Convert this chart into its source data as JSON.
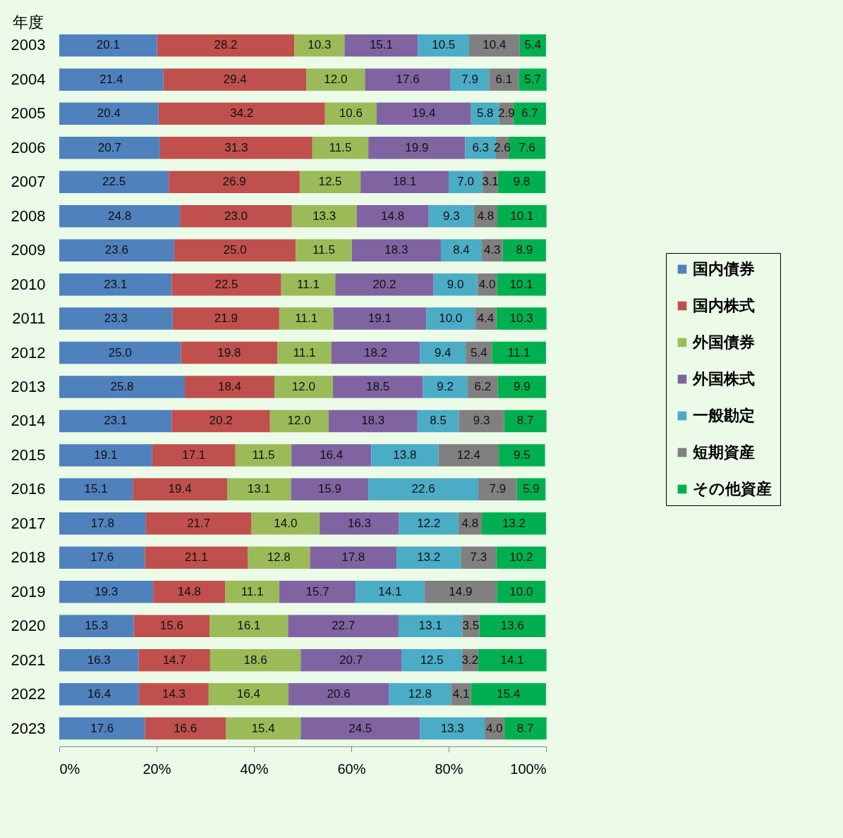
{
  "chart_data": {
    "type": "bar",
    "orientation": "horizontal",
    "stacked": true,
    "legend": "right",
    "grid": false,
    "ylabel": "年度",
    "categories": [
      "2003",
      "2004",
      "2005",
      "2006",
      "2007",
      "2008",
      "2009",
      "2010",
      "2011",
      "2012",
      "2013",
      "2014",
      "2015",
      "2016",
      "2017",
      "2018",
      "2019",
      "2020",
      "2021",
      "2022",
      "2023"
    ],
    "xlim": [
      0,
      100
    ],
    "xticks": [
      {
        "value": 0,
        "label": "0%"
      },
      {
        "value": 20,
        "label": "20%"
      },
      {
        "value": 40,
        "label": "40%"
      },
      {
        "value": 60,
        "label": "60%"
      },
      {
        "value": 80,
        "label": "80%"
      },
      {
        "value": 100,
        "label": "100%"
      }
    ],
    "series": [
      {
        "name": "国内債券",
        "color": "#4f81bd",
        "values": [
          20.1,
          21.4,
          20.4,
          20.7,
          22.5,
          24.8,
          23.6,
          23.1,
          23.3,
          25.0,
          25.8,
          23.1,
          19.1,
          15.1,
          17.8,
          17.6,
          19.3,
          15.3,
          16.3,
          16.4,
          17.6
        ],
        "value_labels": [
          "20.1",
          "21.4",
          "20.4",
          "20.7",
          "22.5",
          "24.8",
          "23.6",
          "23.1",
          "23.3",
          "25.0",
          "25.8",
          "23.1",
          "19.1",
          "15.1",
          "17.8",
          "17.6",
          "19.3",
          "15.3",
          "16.3",
          "16.4",
          "17.6"
        ]
      },
      {
        "name": "国内株式",
        "color": "#c0504d",
        "values": [
          28.2,
          29.4,
          34.2,
          31.3,
          26.9,
          23.0,
          25.0,
          22.5,
          21.9,
          19.8,
          18.4,
          20.2,
          17.1,
          19.4,
          21.7,
          21.1,
          14.8,
          15.6,
          14.7,
          14.3,
          16.6
        ],
        "value_labels": [
          "28.2",
          "29.4",
          "34.2",
          "31.3",
          "26.9",
          "23.0",
          "25.0",
          "22.5",
          "21.9",
          "19.8",
          "18.4",
          "20.2",
          "17.1",
          "19.4",
          "21.7",
          "21.1",
          "14.8",
          "15.6",
          "14.7",
          "14.3",
          "16.6"
        ]
      },
      {
        "name": "外国債券",
        "color": "#9bbb59",
        "values": [
          10.3,
          12.0,
          10.6,
          11.5,
          12.5,
          13.3,
          11.5,
          11.1,
          11.1,
          11.1,
          12.0,
          12.0,
          11.5,
          13.1,
          14.0,
          12.8,
          11.1,
          16.1,
          18.6,
          16.4,
          15.4
        ],
        "value_labels": [
          "10.3",
          "12.0",
          "10.6",
          "11.5",
          "12.5",
          "13.3",
          "11.5",
          "11.1",
          "11.1",
          "11.1",
          "12.0",
          "12.0",
          "11.5",
          "13.1",
          "14.0",
          "12.8",
          "11.1",
          "16.1",
          "18.6",
          "16.4",
          "15.4"
        ]
      },
      {
        "name": "外国株式",
        "color": "#8064a2",
        "values": [
          15.1,
          17.6,
          19.4,
          19.9,
          18.1,
          14.8,
          18.3,
          20.2,
          19.1,
          18.2,
          18.5,
          18.3,
          16.4,
          15.9,
          16.3,
          17.8,
          15.7,
          22.7,
          20.7,
          20.6,
          24.5
        ],
        "value_labels": [
          "15.1",
          "17.6",
          "19.4",
          "19.9",
          "18.1",
          "14.8",
          "18.3",
          "20.2",
          "19.1",
          "18.2",
          "18.5",
          "18.3",
          "16.4",
          "15.9",
          "16.3",
          "17.8",
          "15.7",
          "22.7",
          "20.7",
          "20.6",
          "24.5"
        ]
      },
      {
        "name": "一般勘定",
        "color": "#4bacc6",
        "values": [
          10.5,
          7.9,
          5.8,
          6.3,
          7.0,
          9.3,
          8.4,
          9.0,
          10.0,
          9.4,
          9.2,
          8.5,
          13.8,
          22.6,
          12.2,
          13.2,
          14.1,
          13.1,
          12.5,
          12.8,
          13.3
        ],
        "value_labels": [
          "10.5",
          "7.9",
          "5.8",
          "6.3",
          "7.0",
          "9.3",
          "8.4",
          "9.0",
          "10.0",
          "9.4",
          "9.2",
          "8.5",
          "13.8",
          "22.6",
          "12.2",
          "13.2",
          "14.1",
          "13.1",
          "12.5",
          "12.8",
          "13.3"
        ]
      },
      {
        "name": "短期資産",
        "color": "#808080",
        "values": [
          10.4,
          6.1,
          2.9,
          2.6,
          3.1,
          4.8,
          4.3,
          4.0,
          4.4,
          5.4,
          6.2,
          9.3,
          12.4,
          7.9,
          4.8,
          7.3,
          14.9,
          3.5,
          3.2,
          4.1,
          4.0
        ],
        "value_labels": [
          "10.4",
          "6.1",
          "2.9",
          "2.6",
          "3.1",
          "4.8",
          "4.3",
          "4.0",
          "4.4",
          "5.4",
          "6.2",
          "9.3",
          "12.4",
          "7.9",
          "4.8",
          "7.3",
          "14.9",
          "3.5",
          "3.2",
          "4.1",
          "4.0"
        ]
      },
      {
        "name": "その他資産",
        "color": "#00b050",
        "values": [
          5.4,
          5.7,
          6.7,
          7.6,
          9.8,
          10.1,
          8.9,
          10.1,
          10.3,
          11.1,
          9.9,
          8.7,
          9.5,
          5.9,
          13.2,
          10.2,
          10.0,
          13.6,
          14.1,
          15.4,
          8.7
        ],
        "value_labels": [
          "5.4",
          "5.7",
          "6.7",
          "7.6",
          "9.8",
          "10.1",
          "8.9",
          "10.1",
          "10.3",
          "11.1",
          "9.9",
          "8.7",
          "9.5",
          "5.9",
          "13.2",
          "10.2",
          "10.0",
          "13.6",
          "14.1",
          "15.4",
          "8.7"
        ]
      }
    ]
  }
}
